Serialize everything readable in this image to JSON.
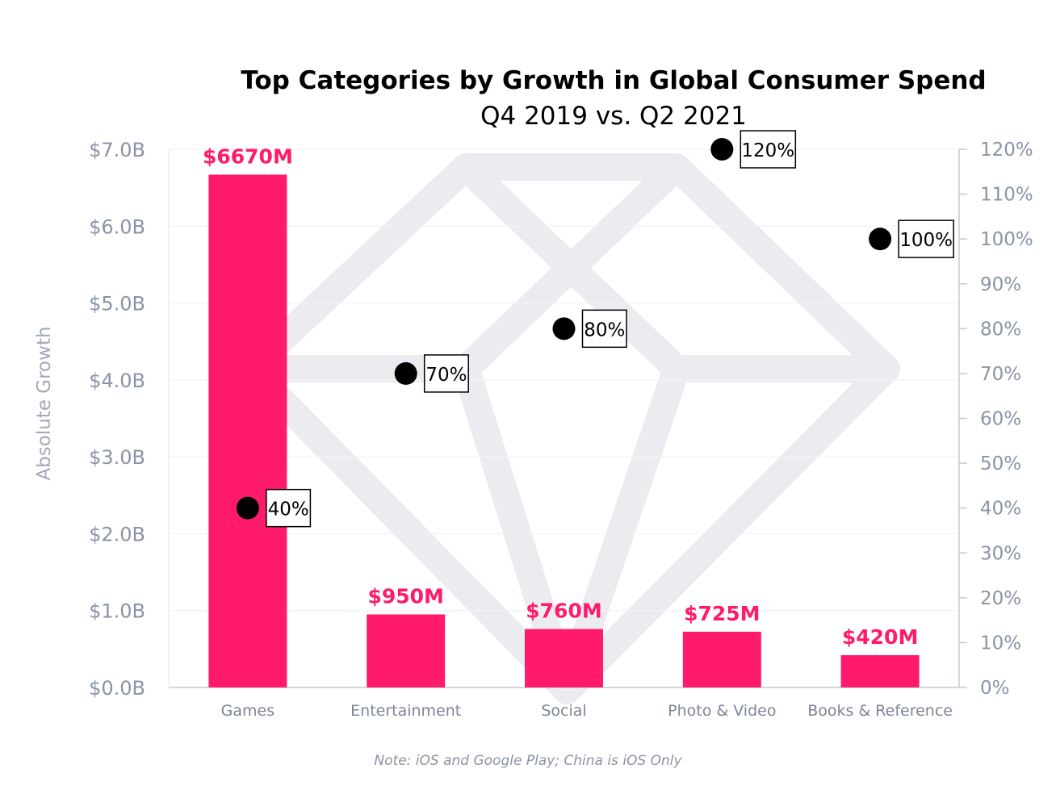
{
  "chart_data": {
    "type": "bar",
    "title": "Top Categories by Growth in Global Consumer Spend",
    "subtitle": "Q4 2019 vs. Q2 2021",
    "ylabel": "Absolute Growth",
    "note": "Note: iOS and Google Play; China is iOS Only",
    "categories": [
      "Games",
      "Entertainment",
      "Social",
      "Photo & Video",
      "Books & Reference"
    ],
    "series": [
      {
        "name": "Absolute Growth",
        "type": "bar",
        "axis": "left",
        "values": [
          6670,
          950,
          760,
          725,
          420
        ],
        "labels": [
          "$6670M",
          "$950M",
          "$760M",
          "$725M",
          "$420M"
        ],
        "color": "#ff1a6b"
      },
      {
        "type": "scatter",
        "axis": "right",
        "values": [
          40,
          70,
          80,
          120,
          100
        ],
        "labels": [
          "40%",
          "70%",
          "80%",
          "120%",
          "100%"
        ],
        "color": "#000000"
      }
    ],
    "y_left": {
      "ylim": [
        0,
        7000
      ],
      "ticks": [
        0,
        1000,
        2000,
        3000,
        4000,
        5000,
        6000,
        7000
      ],
      "tick_labels": [
        "$0.0B",
        "$1.0B",
        "$2.0B",
        "$3.0B",
        "$4.0B",
        "$5.0B",
        "$6.0B",
        "$7.0B"
      ]
    },
    "y_right": {
      "ylim": [
        0,
        120
      ],
      "ticks": [
        0,
        10,
        20,
        30,
        40,
        50,
        60,
        70,
        80,
        90,
        100,
        110,
        120
      ],
      "tick_labels": [
        "0%",
        "10%",
        "20%",
        "30%",
        "40%",
        "50%",
        "60%",
        "70%",
        "80%",
        "90%",
        "100%",
        "110%",
        "120%"
      ]
    },
    "grid": true,
    "colors": {
      "bar": "#ff1a6b",
      "bar_label": "#ff1a6b",
      "axis_text": "#8a93a7",
      "grid": "#f2f3f6",
      "watermark": "#ececf0"
    }
  }
}
